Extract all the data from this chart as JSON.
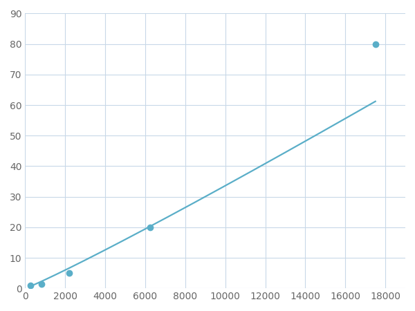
{
  "x": [
    250,
    800,
    2200,
    6250,
    17500
  ],
  "y": [
    1,
    1.5,
    5,
    20,
    80
  ],
  "line_color": "#5aaec8",
  "marker_color": "#5aaec8",
  "marker_size": 6,
  "line_width": 1.6,
  "xlim": [
    0,
    19000
  ],
  "ylim": [
    0,
    90
  ],
  "xticks": [
    0,
    2000,
    4000,
    6000,
    8000,
    10000,
    12000,
    14000,
    16000,
    18000
  ],
  "yticks": [
    0,
    10,
    20,
    30,
    40,
    50,
    60,
    70,
    80,
    90
  ],
  "grid_color": "#c8d8e8",
  "background_color": "#ffffff",
  "tick_label_color": "#666666",
  "tick_label_size": 10,
  "fig_width": 6.0,
  "fig_height": 4.5,
  "dpi": 100
}
